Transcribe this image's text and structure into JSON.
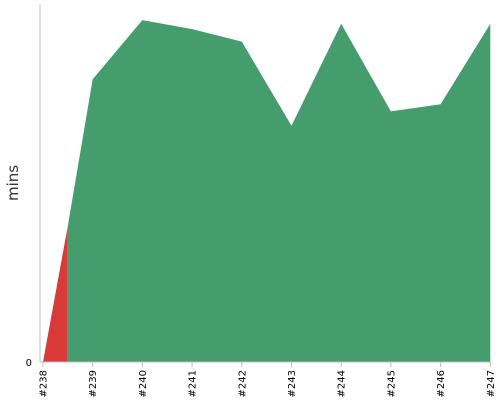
{
  "chart_data": {
    "type": "area",
    "ylabel": "mins",
    "y_tick_labels": [
      "0"
    ],
    "ylim": [
      0,
      20
    ],
    "categories": [
      "#238",
      "#239",
      "#240",
      "#241",
      "#242",
      "#243",
      "#244",
      "#245",
      "#246",
      "#247"
    ],
    "series": [
      {
        "status": "failed",
        "color": "#d73a37",
        "points": [
          [
            0,
            0
          ],
          [
            0.5,
            7.6
          ],
          [
            0.5,
            0
          ]
        ]
      },
      {
        "status": "success",
        "color": "#459d6e",
        "points": [
          [
            0.5,
            7.6
          ],
          [
            1,
            15.8
          ],
          [
            2,
            19.1
          ],
          [
            3,
            18.6
          ],
          [
            4,
            17.9
          ],
          [
            5,
            13.2
          ],
          [
            6,
            18.9
          ],
          [
            7,
            14.0
          ],
          [
            8,
            14.4
          ],
          [
            9,
            18.9
          ]
        ]
      }
    ],
    "grid": false,
    "legend": "none"
  }
}
